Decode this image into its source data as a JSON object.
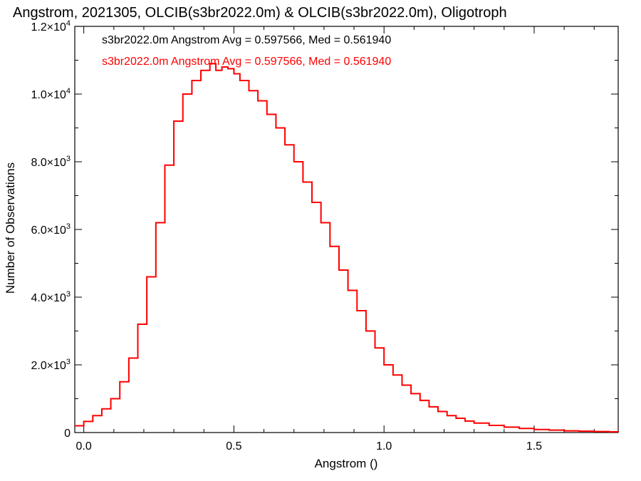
{
  "chart_data": {
    "type": "step",
    "title": "Angstrom, 2021305, OLCIB(s3br2022.0m) & OLCIB(s3br2022.0m), Oligotroph",
    "xlabel": "Angstrom ()",
    "ylabel": "Number of Observations",
    "xlim": [
      -0.03,
      1.78
    ],
    "ylim": [
      0,
      12000
    ],
    "x_ticks": [
      {
        "value": 0.0,
        "label": "0.0"
      },
      {
        "value": 0.5,
        "label": "0.5"
      },
      {
        "value": 1.0,
        "label": "1.0"
      },
      {
        "value": 1.5,
        "label": "1.5"
      }
    ],
    "y_ticks": [
      {
        "value": 0,
        "mant": "0",
        "exp": ""
      },
      {
        "value": 2000,
        "mant": "2.0×10",
        "exp": "3"
      },
      {
        "value": 4000,
        "mant": "4.0×10",
        "exp": "3"
      },
      {
        "value": 6000,
        "mant": "6.0×10",
        "exp": "3"
      },
      {
        "value": 8000,
        "mant": "8.0×10",
        "exp": "3"
      },
      {
        "value": 10000,
        "mant": "1.0×10",
        "exp": "4"
      },
      {
        "value": 12000,
        "mant": "1.2×10",
        "exp": "4"
      }
    ],
    "legend_position": "top-left",
    "grid": false,
    "series": [
      {
        "legend": "s3br2022.0m Angstrom Avg = 0.597566, Med = 0.561940",
        "color": "#000000",
        "x": [
          -0.03,
          0.0,
          0.03,
          0.06,
          0.09,
          0.12,
          0.15,
          0.18,
          0.21,
          0.24,
          0.27,
          0.3,
          0.33,
          0.36,
          0.39,
          0.42,
          0.44,
          0.46,
          0.48,
          0.5,
          0.52,
          0.55,
          0.58,
          0.61,
          0.64,
          0.67,
          0.7,
          0.73,
          0.76,
          0.79,
          0.82,
          0.85,
          0.88,
          0.91,
          0.94,
          0.97,
          1.0,
          1.03,
          1.06,
          1.09,
          1.12,
          1.15,
          1.18,
          1.21,
          1.24,
          1.27,
          1.3,
          1.35,
          1.4,
          1.45,
          1.5,
          1.55,
          1.6,
          1.65,
          1.7,
          1.75,
          1.78
        ],
        "y": [
          200,
          330,
          500,
          700,
          1000,
          1500,
          2200,
          3200,
          4600,
          6200,
          7900,
          9200,
          10000,
          10400,
          10700,
          10900,
          10700,
          10800,
          10750,
          10600,
          10400,
          10100,
          9800,
          9400,
          9000,
          8500,
          8000,
          7400,
          6800,
          6200,
          5500,
          4800,
          4200,
          3600,
          3000,
          2500,
          2000,
          1700,
          1400,
          1150,
          950,
          760,
          620,
          500,
          420,
          340,
          280,
          210,
          160,
          120,
          90,
          70,
          50,
          40,
          30,
          20,
          15
        ]
      },
      {
        "legend": "s3br2022.0m Angstrom Avg = 0.597566, Med = 0.561940",
        "color": "#ff0000",
        "x": [
          -0.03,
          0.0,
          0.03,
          0.06,
          0.09,
          0.12,
          0.15,
          0.18,
          0.21,
          0.24,
          0.27,
          0.3,
          0.33,
          0.36,
          0.39,
          0.42,
          0.44,
          0.46,
          0.48,
          0.5,
          0.52,
          0.55,
          0.58,
          0.61,
          0.64,
          0.67,
          0.7,
          0.73,
          0.76,
          0.79,
          0.82,
          0.85,
          0.88,
          0.91,
          0.94,
          0.97,
          1.0,
          1.03,
          1.06,
          1.09,
          1.12,
          1.15,
          1.18,
          1.21,
          1.24,
          1.27,
          1.3,
          1.35,
          1.4,
          1.45,
          1.5,
          1.55,
          1.6,
          1.65,
          1.7,
          1.75,
          1.78
        ],
        "y": [
          200,
          330,
          500,
          700,
          1000,
          1500,
          2200,
          3200,
          4600,
          6200,
          7900,
          9200,
          10000,
          10400,
          10700,
          10900,
          10700,
          10800,
          10750,
          10600,
          10400,
          10100,
          9800,
          9400,
          9000,
          8500,
          8000,
          7400,
          6800,
          6200,
          5500,
          4800,
          4200,
          3600,
          3000,
          2500,
          2000,
          1700,
          1400,
          1150,
          950,
          760,
          620,
          500,
          420,
          340,
          280,
          210,
          160,
          120,
          90,
          70,
          50,
          40,
          30,
          20,
          15
        ]
      }
    ]
  }
}
